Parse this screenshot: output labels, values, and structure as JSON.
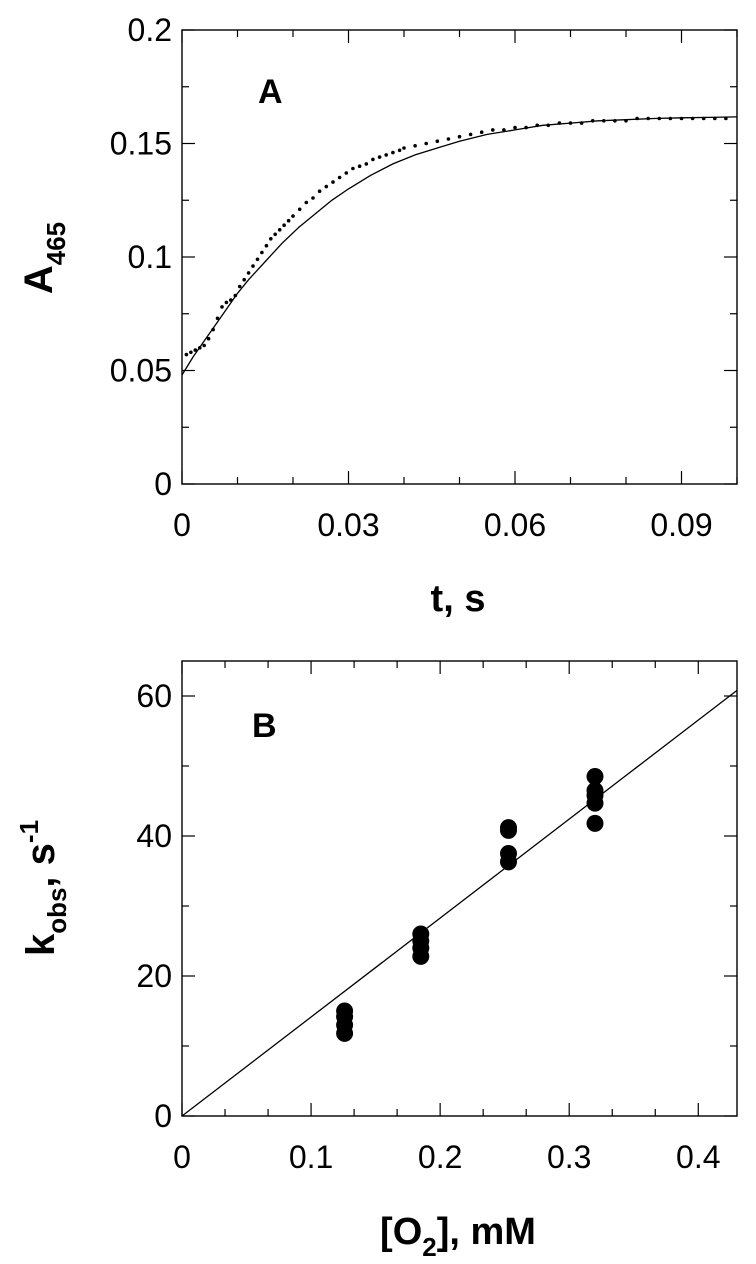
{
  "chart_data": [
    {
      "panel": "A",
      "type": "line",
      "panel_label": "A",
      "xlabel": "t, s",
      "ylabel": {
        "main": "A",
        "sub": "465"
      },
      "xlim": [
        0,
        0.1
      ],
      "ylim": [
        0,
        0.2
      ],
      "x_ticks": [
        0,
        0.03,
        0.06,
        0.09
      ],
      "x_tick_labels": [
        "0",
        "0.03",
        "0.06",
        "0.09"
      ],
      "y_ticks": [
        0,
        0.05,
        0.1,
        0.15,
        0.2
      ],
      "y_tick_labels": [
        "0",
        "0.05",
        "0.1",
        "0.15",
        "0.2"
      ],
      "grid": false,
      "series": [
        {
          "kind": "points",
          "x": [
            0.0008,
            0.0016,
            0.0024,
            0.0032,
            0.004,
            0.0048,
            0.0056,
            0.0064,
            0.0072,
            0.008,
            0.0088,
            0.0096,
            0.0104,
            0.0112,
            0.012,
            0.0128,
            0.0136,
            0.0144,
            0.0152,
            0.016,
            0.0168,
            0.0176,
            0.0184,
            0.0192,
            0.02,
            0.0212,
            0.0224,
            0.0236,
            0.0248,
            0.026,
            0.0272,
            0.0284,
            0.0296,
            0.0308,
            0.032,
            0.0332,
            0.0344,
            0.0356,
            0.0368,
            0.038,
            0.0392,
            0.04,
            0.042,
            0.044,
            0.046,
            0.048,
            0.05,
            0.052,
            0.054,
            0.056,
            0.058,
            0.06,
            0.062,
            0.064,
            0.066,
            0.068,
            0.07,
            0.072,
            0.074,
            0.076,
            0.078,
            0.08,
            0.082,
            0.084,
            0.086,
            0.088,
            0.09,
            0.092,
            0.094,
            0.096,
            0.098
          ],
          "y": [
            0.057,
            0.058,
            0.059,
            0.06,
            0.061,
            0.064,
            0.068,
            0.073,
            0.078,
            0.08,
            0.081,
            0.083,
            0.087,
            0.09,
            0.093,
            0.096,
            0.099,
            0.102,
            0.105,
            0.108,
            0.11,
            0.112,
            0.114,
            0.116,
            0.118,
            0.121,
            0.124,
            0.126,
            0.129,
            0.131,
            0.133,
            0.135,
            0.137,
            0.139,
            0.14,
            0.141,
            0.143,
            0.144,
            0.145,
            0.146,
            0.147,
            0.148,
            0.149,
            0.15,
            0.151,
            0.152,
            0.153,
            0.154,
            0.155,
            0.156,
            0.156,
            0.157,
            0.157,
            0.158,
            0.158,
            0.159,
            0.159,
            0.159,
            0.16,
            0.16,
            0.16,
            0.16,
            0.161,
            0.161,
            0.161,
            0.161,
            0.161,
            0.161,
            0.161,
            0.161,
            0.161
          ]
        },
        {
          "kind": "fit",
          "x": [
            0,
            0.002,
            0.004,
            0.006,
            0.008,
            0.01,
            0.012,
            0.015,
            0.018,
            0.021,
            0.024,
            0.027,
            0.03,
            0.034,
            0.038,
            0.042,
            0.046,
            0.05,
            0.055,
            0.06,
            0.065,
            0.07,
            0.075,
            0.08,
            0.085,
            0.09,
            0.095,
            0.1
          ],
          "y": [
            0.048,
            0.056,
            0.063,
            0.07,
            0.077,
            0.084,
            0.09,
            0.098,
            0.106,
            0.113,
            0.119,
            0.125,
            0.13,
            0.136,
            0.141,
            0.145,
            0.148,
            0.151,
            0.154,
            0.156,
            0.158,
            0.159,
            0.16,
            0.1605,
            0.161,
            0.1613,
            0.1615,
            0.1617
          ]
        }
      ]
    },
    {
      "panel": "B",
      "type": "scatter",
      "panel_label": "B",
      "xlabel": {
        "pre": "[O",
        "sub": "2",
        "post": "], mM"
      },
      "ylabel": {
        "main": "k",
        "sub": "obs",
        "mid": ", s",
        "sup": "-1"
      },
      "xlim": [
        0,
        0.43
      ],
      "ylim": [
        0,
        65
      ],
      "x_ticks": [
        0,
        0.1,
        0.2,
        0.3,
        0.4
      ],
      "x_tick_labels": [
        "0",
        "0.1",
        "0.2",
        "0.3",
        "0.4"
      ],
      "y_ticks": [
        0,
        20,
        40,
        60
      ],
      "y_tick_labels": [
        "0",
        "20",
        "40",
        "60"
      ],
      "grid": false,
      "series": [
        {
          "kind": "points",
          "x": [
            0.126,
            0.126,
            0.126,
            0.126,
            0.185,
            0.185,
            0.185,
            0.185,
            0.253,
            0.253,
            0.253,
            0.253,
            0.32,
            0.32,
            0.32,
            0.32,
            0.32
          ],
          "y": [
            11.8,
            13.0,
            14.2,
            15.0,
            22.8,
            24.0,
            25.0,
            26.0,
            36.3,
            37.5,
            40.8,
            41.2,
            41.8,
            44.7,
            45.8,
            46.5,
            48.5
          ]
        },
        {
          "kind": "fit",
          "x": [
            0,
            0.43
          ],
          "y": [
            0,
            60.8
          ]
        }
      ]
    }
  ]
}
